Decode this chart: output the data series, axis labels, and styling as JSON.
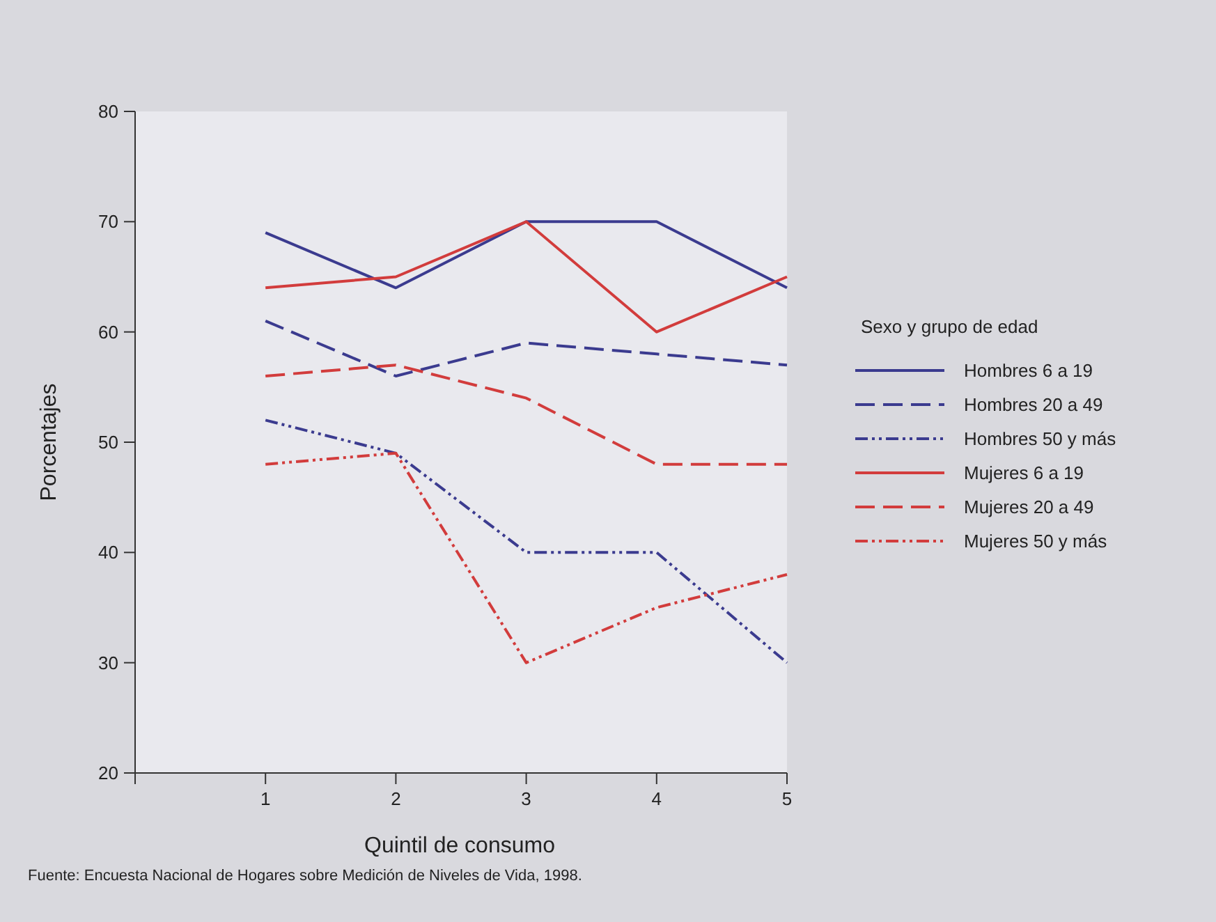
{
  "chart_data": {
    "type": "line",
    "xlabel": "Quintil de consumo",
    "ylabel": "Porcentajes",
    "legend_title": "Sexo y grupo de edad",
    "legend": "right",
    "x": [
      1,
      2,
      3,
      4,
      5
    ],
    "xlim": [
      0,
      5
    ],
    "xticks": [
      {
        "value": 0,
        "label": null
      },
      1,
      2,
      3,
      4,
      5
    ],
    "ylim": [
      20,
      80
    ],
    "yticks": [
      20,
      30,
      40,
      50,
      60,
      70,
      80
    ],
    "grid": false,
    "series": [
      {
        "name": "Hombres 6 a 19",
        "color": "#3b3b8f",
        "line_style": "solid",
        "values": [
          69,
          64,
          70,
          70,
          64
        ]
      },
      {
        "name": "Hombres 20 a 49",
        "color": "#3b3b8f",
        "line_style": "dashed",
        "values": [
          61,
          56,
          59,
          58,
          57
        ]
      },
      {
        "name": "Hombres 50 y más",
        "color": "#3b3b8f",
        "line_style": "dotted",
        "values": [
          52,
          49,
          40,
          40,
          30
        ]
      },
      {
        "name": "Mujeres 6 a 19",
        "color": "#d23c3c",
        "line_style": "solid",
        "values": [
          64,
          65,
          70,
          60,
          65
        ]
      },
      {
        "name": "Mujeres 20 a 49",
        "color": "#d23c3c",
        "line_style": "dashed",
        "values": [
          56,
          57,
          54,
          48,
          48
        ]
      },
      {
        "name": "Mujeres 50 y más",
        "color": "#d23c3c",
        "line_style": "dotted",
        "values": [
          48,
          49,
          30,
          35,
          38
        ]
      }
    ],
    "annotations": [
      "Fuente: Encuesta Nacional de Hogares sobre Medición de Niveles de Vida, 1998."
    ]
  }
}
